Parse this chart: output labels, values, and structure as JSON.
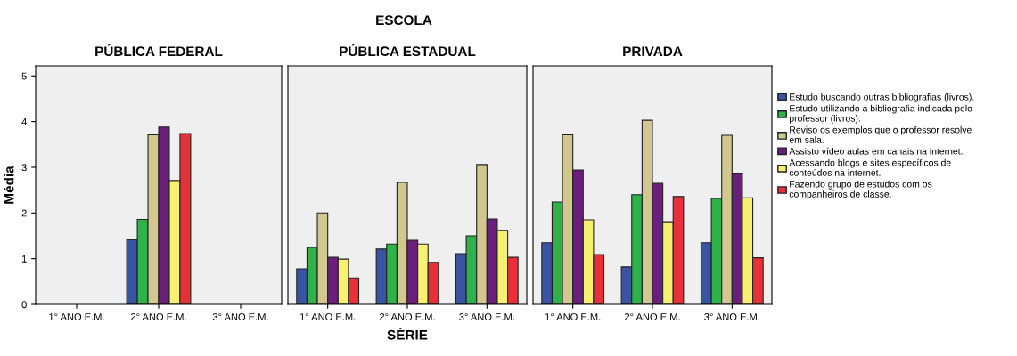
{
  "chart_data": [
    {
      "type": "bar",
      "title": "PÚBLICA FEDERAL",
      "ylabel": "Média",
      "categories": [
        "1° ANO E.M.",
        "2° ANO E.M.",
        "3° ANO E.M."
      ],
      "ylim": [
        0,
        5.22
      ],
      "yticks": [
        0,
        1,
        2,
        3,
        4,
        5
      ],
      "grid": false,
      "legend": false,
      "series": [
        {
          "color": "#3a54a4",
          "values": [
            null,
            1.42,
            null
          ]
        },
        {
          "color": "#2db34a",
          "values": [
            null,
            1.86,
            null
          ]
        },
        {
          "color": "#d2c78e",
          "values": [
            null,
            3.71,
            null
          ]
        },
        {
          "color": "#6b1f7c",
          "values": [
            null,
            3.88,
            null
          ]
        },
        {
          "color": "#f8f070",
          "values": [
            null,
            2.71,
            null
          ]
        },
        {
          "color": "#e8303a",
          "values": [
            null,
            3.74,
            null
          ]
        }
      ]
    },
    {
      "type": "bar",
      "title": "PÚBLICA ESTADUAL",
      "xlabel": "SÉRIE",
      "annotations": [
        "ESCOLA"
      ],
      "categories": [
        "1° ANO E.M.",
        "2° ANO E.M.",
        "3° ANO E.M."
      ],
      "ylim": [
        0,
        5.22
      ],
      "yticks": [
        0,
        1,
        2,
        3,
        4,
        5
      ],
      "tick_labels": "x",
      "grid": false,
      "legend": false,
      "series": [
        {
          "color": "#3a54a4",
          "values": [
            0.78,
            1.21,
            1.11
          ]
        },
        {
          "color": "#2db34a",
          "values": [
            1.25,
            1.32,
            1.5
          ]
        },
        {
          "color": "#d2c78e",
          "values": [
            2.0,
            2.67,
            3.06
          ]
        },
        {
          "color": "#6b1f7c",
          "values": [
            1.03,
            1.4,
            1.87
          ]
        },
        {
          "color": "#f8f070",
          "values": [
            0.99,
            1.32,
            1.62
          ]
        },
        {
          "color": "#e8303a",
          "values": [
            0.58,
            0.92,
            1.03
          ]
        }
      ]
    },
    {
      "type": "bar",
      "title": "PRIVADA",
      "categories": [
        "1° ANO E.M.",
        "2° ANO E.M.",
        "3° ANO E.M."
      ],
      "ylim": [
        0,
        5.22
      ],
      "yticks": [
        0,
        1,
        2,
        3,
        4,
        5
      ],
      "tick_labels": "x",
      "grid": false,
      "legend": "right",
      "series": [
        {
          "name": "Estudo buscando outras bibliografias (livros).",
          "color": "#3a54a4",
          "values": [
            1.35,
            0.82,
            1.35
          ]
        },
        {
          "name": "Estudo utilizando a bibliografia indicada pelo\nprofessor (livros).",
          "color": "#2db34a",
          "values": [
            2.24,
            2.4,
            2.32
          ]
        },
        {
          "name": "Reviso os exemplos que o professor resolve\nem sala.",
          "color": "#d2c78e",
          "values": [
            3.71,
            4.03,
            3.7
          ]
        },
        {
          "name": "Assisto vídeo aulas em canais na internet.",
          "color": "#6b1f7c",
          "values": [
            2.94,
            2.65,
            2.87
          ]
        },
        {
          "name": "Acessando blogs e sites específicos de\nconteúdos na internet.",
          "color": "#f8f070",
          "values": [
            1.85,
            1.81,
            2.33
          ]
        },
        {
          "name": "Fazendo grupo de estudos com os\ncompanheiros de classe.",
          "color": "#e8303a",
          "values": [
            1.09,
            2.36,
            1.02
          ]
        }
      ]
    }
  ]
}
